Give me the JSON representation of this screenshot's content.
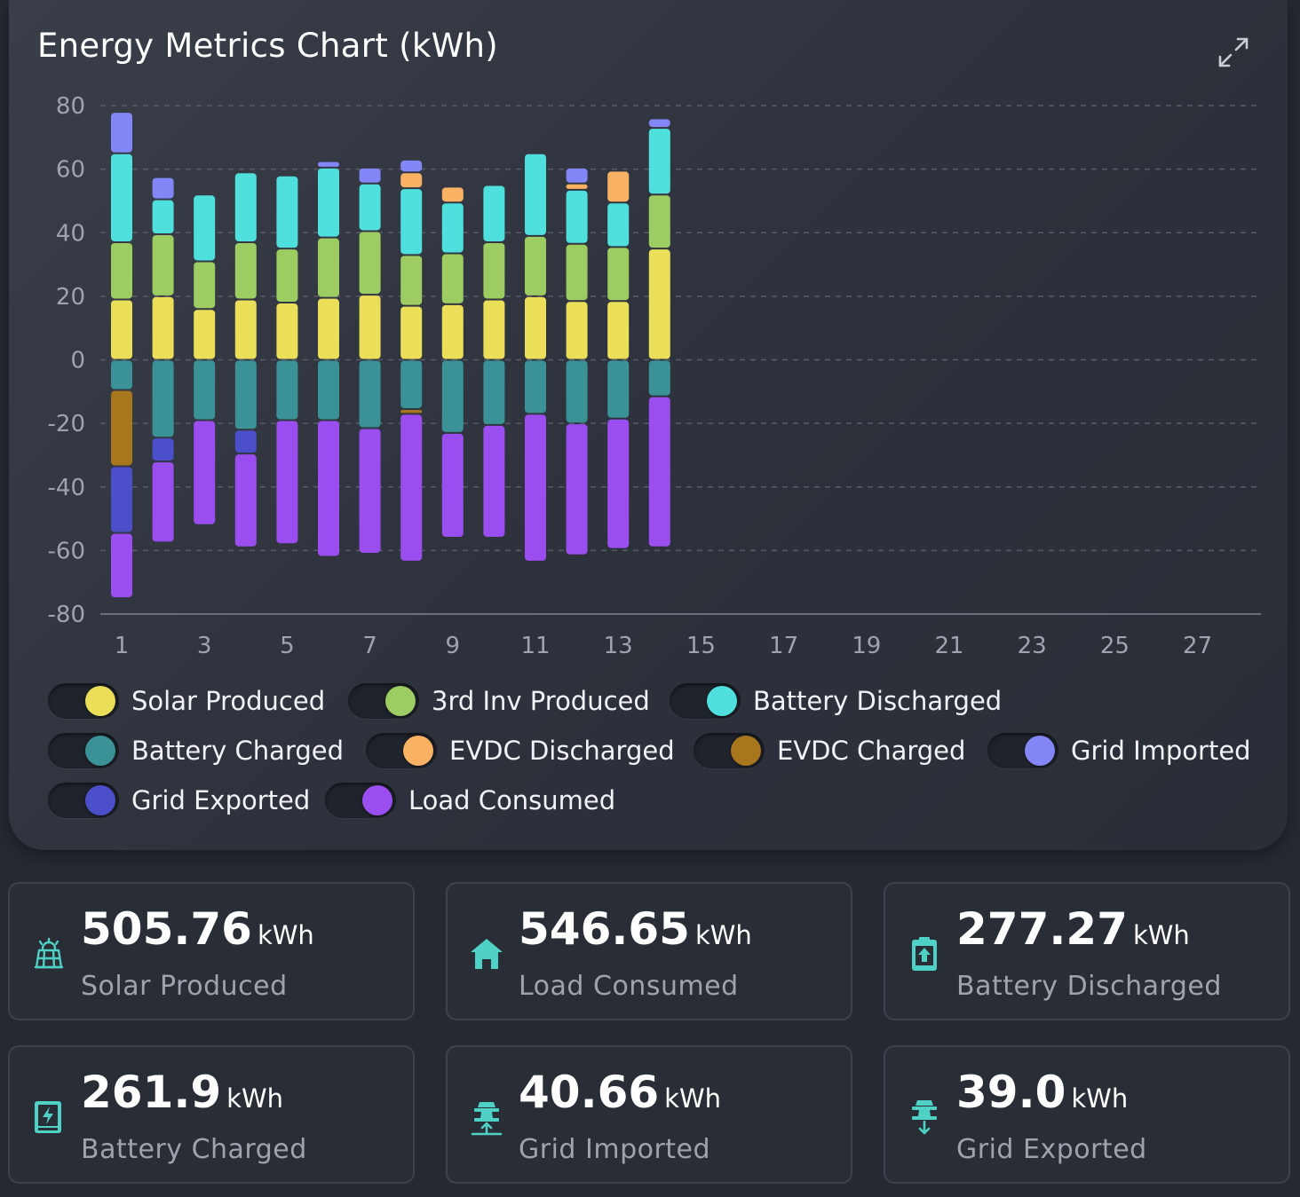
{
  "title": "Energy Metrics Chart (kWh)",
  "expand_icon": "expand-icon",
  "colors": {
    "solar": "#ebdf5a",
    "inv3": "#9ccc62",
    "batt_dis": "#4fe0dd",
    "batt_chg": "#3a9196",
    "evdc_dis": "#f9b164",
    "evdc_chg": "#a8761d",
    "grid_imp": "#8386f7",
    "grid_exp": "#4c4fca",
    "load": "#9b4ef0"
  },
  "legend": [
    {
      "key": "solar",
      "label": "Solar Produced"
    },
    {
      "key": "inv3",
      "label": "3rd Inv Produced"
    },
    {
      "key": "batt_dis",
      "label": "Battery Discharged"
    },
    {
      "key": "batt_chg",
      "label": "Battery Charged"
    },
    {
      "key": "evdc_dis",
      "label": "EVDC Discharged"
    },
    {
      "key": "evdc_chg",
      "label": "EVDC Charged"
    },
    {
      "key": "grid_imp",
      "label": "Grid Imported"
    },
    {
      "key": "grid_exp",
      "label": "Grid Exported"
    },
    {
      "key": "load",
      "label": "Load Consumed"
    }
  ],
  "chart_data": {
    "type": "bar",
    "stacked": true,
    "title": "Energy Metrics Chart (kWh)",
    "ylim": [
      -80,
      80
    ],
    "yticks": [
      80,
      60,
      40,
      20,
      0,
      -20,
      -40,
      -60,
      -80
    ],
    "xticks": [
      1,
      3,
      5,
      7,
      9,
      11,
      13,
      15,
      17,
      19,
      21,
      23,
      25,
      27
    ],
    "x_range": [
      1,
      28
    ],
    "grid": true,
    "categories": [
      1,
      2,
      3,
      4,
      5,
      6,
      7,
      8,
      9,
      10,
      11,
      12,
      13,
      14
    ],
    "series": [
      {
        "key": "solar",
        "name": "Solar Produced",
        "values": [
          19,
          20,
          16,
          19,
          18,
          19.5,
          20.5,
          17,
          17.5,
          19,
          20,
          18.5,
          18.5,
          35
        ]
      },
      {
        "key": "inv3",
        "name": "3rd Inv Produced",
        "values": [
          18,
          19.5,
          15,
          18,
          17,
          19,
          20,
          16,
          16,
          18,
          19,
          18,
          17,
          17
        ]
      },
      {
        "key": "batt_dis",
        "name": "Battery Discharged",
        "values": [
          28,
          11,
          21,
          22,
          23,
          22,
          15,
          21,
          16,
          18,
          26,
          17,
          14,
          21
        ]
      },
      {
        "key": "evdc_dis",
        "name": "EVDC Discharged",
        "values": [
          0,
          0,
          0,
          0,
          0,
          0,
          0,
          5,
          5,
          0,
          0,
          2,
          10,
          0
        ]
      },
      {
        "key": "grid_imp",
        "name": "Grid Imported",
        "values": [
          13,
          7,
          0,
          0,
          0,
          2,
          5,
          4,
          0,
          0,
          0,
          5,
          0,
          3
        ]
      },
      {
        "key": "batt_chg",
        "name": "Battery Charged",
        "values": [
          -9.5,
          -24.5,
          -19,
          -22,
          -19,
          -19,
          -21.5,
          -15.5,
          -23,
          -20.5,
          -17,
          -20,
          -18.5,
          -11.5
        ]
      },
      {
        "key": "evdc_chg",
        "name": "EVDC Charged",
        "values": [
          -24,
          0,
          0,
          0,
          0,
          0,
          0,
          -1.5,
          0,
          0,
          0,
          0,
          0,
          0
        ]
      },
      {
        "key": "grid_exp",
        "name": "Grid Exported",
        "values": [
          -21,
          -7.5,
          0,
          -7.5,
          0,
          0,
          0,
          0,
          0,
          0,
          0,
          0,
          0,
          0
        ]
      },
      {
        "key": "load",
        "name": "Load Consumed",
        "values": [
          -20.5,
          -25.5,
          -33,
          -29.5,
          -39,
          -43,
          -39.5,
          -46.5,
          -33,
          -35.5,
          -46.5,
          -41.5,
          -41,
          -47.5
        ]
      }
    ]
  },
  "stats": [
    {
      "value": "505.76",
      "unit": "kWh",
      "label": "Solar Produced",
      "icon": "solar-panel-icon"
    },
    {
      "value": "546.65",
      "unit": "kWh",
      "label": "Load Consumed",
      "icon": "home-icon"
    },
    {
      "value": "277.27",
      "unit": "kWh",
      "label": "Battery Discharged",
      "icon": "battery-discharge-icon"
    },
    {
      "value": "261.9",
      "unit": "kWh",
      "label": "Battery Charged",
      "icon": "battery-charge-icon"
    },
    {
      "value": "40.66",
      "unit": "kWh",
      "label": "Grid Imported",
      "icon": "grid-import-icon"
    },
    {
      "value": "39.0",
      "unit": "kWh",
      "label": "Grid Exported",
      "icon": "grid-export-icon"
    }
  ],
  "icon_color": "#4fd1c5"
}
